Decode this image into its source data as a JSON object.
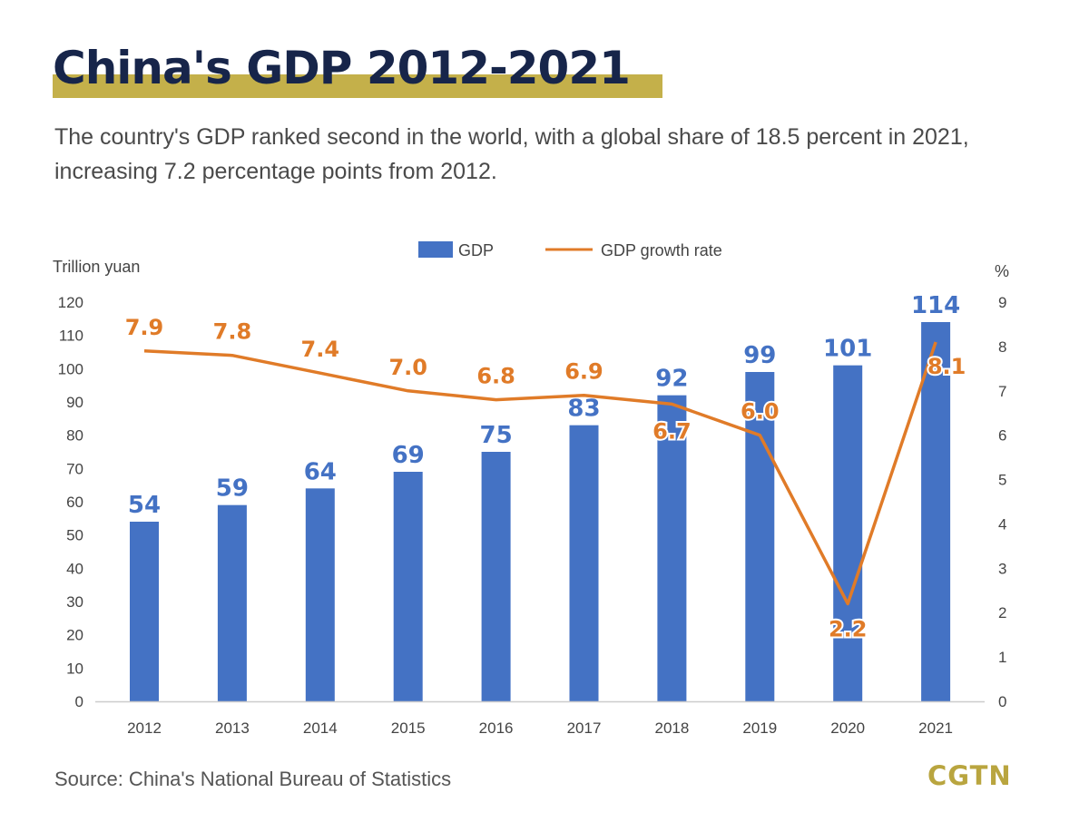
{
  "header": {
    "title": "China's GDP 2012-2021",
    "subtitle": "The country's GDP ranked second in the world, with a global share of 18.5 percent in 2021, increasing 7.2 percentage points from 2012."
  },
  "footer": {
    "source": "Source: China's National Bureau of Statistics",
    "logo_text": "CGTN"
  },
  "colors": {
    "bar": "#4472c4",
    "line": "#e07b28",
    "title_text": "#17254a",
    "title_highlight": "#c4b04a",
    "logo": "#b9a53f"
  },
  "chart_data": {
    "type": "bar",
    "categories": [
      "2012",
      "2013",
      "2014",
      "2015",
      "2016",
      "2017",
      "2018",
      "2019",
      "2020",
      "2021"
    ],
    "series": [
      {
        "name": "GDP",
        "type": "bar",
        "axis": "left",
        "values": [
          54,
          59,
          64,
          69,
          75,
          83,
          92,
          99,
          101,
          114
        ],
        "labels": [
          "54",
          "59",
          "64",
          "69",
          "75",
          "83",
          "92",
          "99",
          "101",
          "114"
        ]
      },
      {
        "name": "GDP growth rate",
        "type": "line",
        "axis": "right",
        "values": [
          7.9,
          7.8,
          7.4,
          7.0,
          6.8,
          6.9,
          6.7,
          6.0,
          2.2,
          8.1
        ],
        "labels": [
          "7.9",
          "7.8",
          "7.4",
          "7.0",
          "6.8",
          "6.9",
          "6.7",
          "6.0",
          "2.2",
          "8.1"
        ]
      }
    ],
    "y_left": {
      "label": "Trillion yuan",
      "ylim": [
        0,
        120
      ],
      "ticks": [
        "0",
        "10",
        "20",
        "30",
        "40",
        "50",
        "60",
        "70",
        "80",
        "90",
        "100",
        "110",
        "120"
      ]
    },
    "y_right": {
      "label": "%",
      "ylim": [
        0,
        9
      ],
      "ticks": [
        "0",
        "1",
        "2",
        "3",
        "4",
        "5",
        "6",
        "7",
        "8",
        "9"
      ]
    },
    "legend": {
      "position": "top-center",
      "entries": [
        "GDP",
        "GDP growth rate"
      ]
    },
    "grid": false
  }
}
